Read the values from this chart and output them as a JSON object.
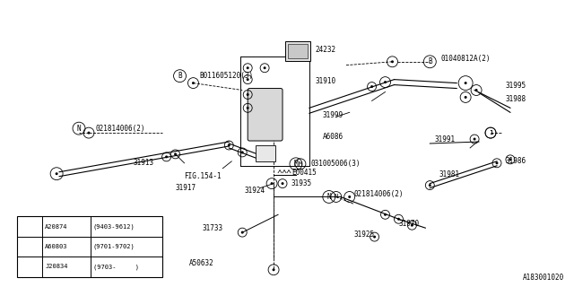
{
  "bg_color": "#ffffff",
  "line_color": "#000000",
  "fig_width": 6.4,
  "fig_height": 3.2,
  "watermark": "A183001020",
  "legend": {
    "rows": [
      [
        "A20874",
        "(9403-9612)"
      ],
      [
        "A60803",
        "(9701-9702)"
      ],
      [
        "J20834",
        "(9703-     )"
      ]
    ]
  }
}
